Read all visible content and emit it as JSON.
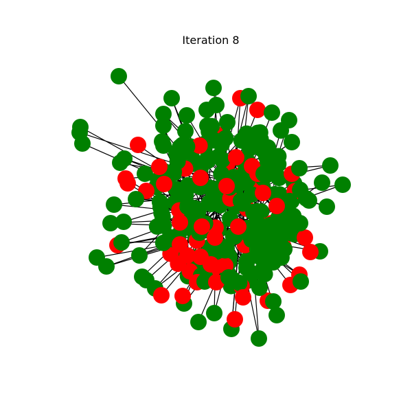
{
  "figure": {
    "title": "Iteration 8",
    "colors": {
      "healthy": "#008000",
      "infected": "#ff0000",
      "edge": "#000000",
      "background": "#ffffff"
    },
    "node_states": [
      "healthy",
      "infected"
    ]
  }
}
